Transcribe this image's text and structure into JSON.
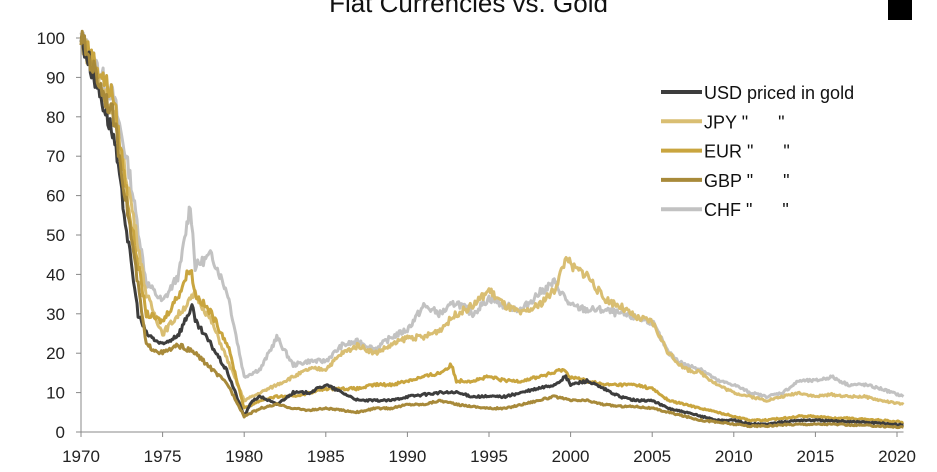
{
  "chart_data": {
    "type": "line",
    "title": "Fiat Currencies vs. Gold",
    "xlabel": "",
    "ylabel": "",
    "xlim": [
      1970,
      2020.4
    ],
    "ylim": [
      0,
      100
    ],
    "xticks": [
      "1970",
      "1975",
      "1980",
      "1985",
      "1990",
      "1995",
      "2000",
      "2005",
      "2010",
      "2015",
      "2020"
    ],
    "yticks": [
      "0",
      "10",
      "20",
      "30",
      "40",
      "50",
      "60",
      "70",
      "80",
      "90",
      "100"
    ],
    "legend_position": "top-right",
    "series": [
      {
        "name": "CHF \"      \"",
        "color": "#c2c2c2",
        "points": [
          [
            1970,
            100
          ],
          [
            1972,
            85
          ],
          [
            1973,
            65
          ],
          [
            1974,
            38
          ],
          [
            1975,
            33
          ],
          [
            1976,
            40
          ],
          [
            1976.7,
            58
          ],
          [
            1977,
            42
          ],
          [
            1978,
            45
          ],
          [
            1979,
            35
          ],
          [
            1980,
            14
          ],
          [
            1981,
            16
          ],
          [
            1982,
            24
          ],
          [
            1983,
            17
          ],
          [
            1984,
            18
          ],
          [
            1985,
            18
          ],
          [
            1986,
            22
          ],
          [
            1987,
            23
          ],
          [
            1988,
            21
          ],
          [
            1989,
            24
          ],
          [
            1990,
            26
          ],
          [
            1991,
            32
          ],
          [
            1992,
            30
          ],
          [
            1993,
            33
          ],
          [
            1994,
            30
          ],
          [
            1995,
            34
          ],
          [
            1996,
            32
          ],
          [
            1997,
            31
          ],
          [
            1998,
            35
          ],
          [
            1999,
            38
          ],
          [
            2000,
            32
          ],
          [
            2001,
            31
          ],
          [
            2002,
            31
          ],
          [
            2003,
            30
          ],
          [
            2004,
            29
          ],
          [
            2005,
            28
          ],
          [
            2006,
            20
          ],
          [
            2007,
            17
          ],
          [
            2008,
            16
          ],
          [
            2009,
            13
          ],
          [
            2010,
            12
          ],
          [
            2011,
            10
          ],
          [
            2012,
            9
          ],
          [
            2013,
            10
          ],
          [
            2014,
            13
          ],
          [
            2015,
            13
          ],
          [
            2016,
            14
          ],
          [
            2017,
            12
          ],
          [
            2018,
            12
          ],
          [
            2019,
            11
          ],
          [
            2020.4,
            9
          ]
        ]
      },
      {
        "name": "JPY \"      \"",
        "color": "#d9be72",
        "points": [
          [
            1970,
            100
          ],
          [
            1972,
            80
          ],
          [
            1973,
            60
          ],
          [
            1974,
            35
          ],
          [
            1975,
            25
          ],
          [
            1976,
            30
          ],
          [
            1977,
            35
          ],
          [
            1978,
            28
          ],
          [
            1979,
            18
          ],
          [
            1980,
            8
          ],
          [
            1981,
            10
          ],
          [
            1982,
            12
          ],
          [
            1983,
            14
          ],
          [
            1984,
            16
          ],
          [
            1985,
            16
          ],
          [
            1986,
            20
          ],
          [
            1987,
            22
          ],
          [
            1988,
            20
          ],
          [
            1989,
            22
          ],
          [
            1990,
            24
          ],
          [
            1991,
            24
          ],
          [
            1992,
            26
          ],
          [
            1993,
            30
          ],
          [
            1994,
            32
          ],
          [
            1995,
            36
          ],
          [
            1996,
            32
          ],
          [
            1997,
            30
          ],
          [
            1998,
            32
          ],
          [
            1999,
            36
          ],
          [
            1999.8,
            45
          ],
          [
            2000,
            42
          ],
          [
            2001,
            40
          ],
          [
            2002,
            34
          ],
          [
            2003,
            32
          ],
          [
            2004,
            29
          ],
          [
            2005,
            28
          ],
          [
            2006,
            20
          ],
          [
            2007,
            16
          ],
          [
            2008,
            15
          ],
          [
            2009,
            12
          ],
          [
            2010,
            10
          ],
          [
            2011,
            9
          ],
          [
            2012,
            8
          ],
          [
            2013,
            9
          ],
          [
            2014,
            10
          ],
          [
            2015,
            9
          ],
          [
            2016,
            9.5
          ],
          [
            2017,
            9
          ],
          [
            2018,
            9
          ],
          [
            2019,
            8
          ],
          [
            2020.4,
            7
          ]
        ]
      },
      {
        "name": "EUR \"      \"",
        "color": "#c9a53f",
        "points": [
          [
            1970,
            100
          ],
          [
            1972,
            85
          ],
          [
            1973,
            55
          ],
          [
            1974,
            30
          ],
          [
            1975,
            28
          ],
          [
            1976,
            35
          ],
          [
            1976.7,
            42
          ],
          [
            1977,
            35
          ],
          [
            1978,
            30
          ],
          [
            1979,
            22
          ],
          [
            1980,
            6
          ],
          [
            1981,
            8
          ],
          [
            1982,
            9
          ],
          [
            1983,
            9
          ],
          [
            1984,
            10
          ],
          [
            1985,
            11
          ],
          [
            1986,
            11
          ],
          [
            1987,
            11
          ],
          [
            1988,
            12
          ],
          [
            1989,
            12
          ],
          [
            1990,
            13
          ],
          [
            1991,
            14
          ],
          [
            1992,
            15
          ],
          [
            1992.7,
            17
          ],
          [
            1993,
            13
          ],
          [
            1994,
            13
          ],
          [
            1995,
            14
          ],
          [
            1996,
            13
          ],
          [
            1997,
            13
          ],
          [
            1998,
            14
          ],
          [
            1999,
            15
          ],
          [
            1999.5,
            16
          ],
          [
            2000,
            14
          ],
          [
            2001,
            13
          ],
          [
            2002,
            12
          ],
          [
            2003,
            12
          ],
          [
            2004,
            12
          ],
          [
            2005,
            11
          ],
          [
            2006,
            8
          ],
          [
            2007,
            7
          ],
          [
            2008,
            6
          ],
          [
            2009,
            5
          ],
          [
            2010,
            4
          ],
          [
            2011,
            3
          ],
          [
            2012,
            3
          ],
          [
            2013,
            3.5
          ],
          [
            2014,
            4
          ],
          [
            2015,
            4
          ],
          [
            2016,
            3.5
          ],
          [
            2017,
            3.5
          ],
          [
            2018,
            3.2
          ],
          [
            2019,
            3
          ],
          [
            2020.4,
            2.5
          ]
        ]
      },
      {
        "name": "USD priced in gold",
        "color": "#3d3d3d",
        "points": [
          [
            1970,
            100
          ],
          [
            1971,
            88
          ],
          [
            1972,
            75
          ],
          [
            1973,
            45
          ],
          [
            1973.5,
            30
          ],
          [
            1974,
            25
          ],
          [
            1975,
            22
          ],
          [
            1976,
            25
          ],
          [
            1976.8,
            32
          ],
          [
            1977,
            28
          ],
          [
            1978,
            22
          ],
          [
            1979,
            15
          ],
          [
            1980,
            4
          ],
          [
            1980.5,
            8
          ],
          [
            1981,
            9
          ],
          [
            1982,
            7
          ],
          [
            1983,
            10
          ],
          [
            1984,
            10
          ],
          [
            1985,
            12
          ],
          [
            1986,
            10
          ],
          [
            1987,
            8
          ],
          [
            1988,
            8
          ],
          [
            1989,
            8
          ],
          [
            1990,
            9
          ],
          [
            1991,
            9.5
          ],
          [
            1992,
            10
          ],
          [
            1993,
            10
          ],
          [
            1994,
            9
          ],
          [
            1995,
            9
          ],
          [
            1996,
            9
          ],
          [
            1997,
            10
          ],
          [
            1998,
            11
          ],
          [
            1999,
            12
          ],
          [
            1999.7,
            14
          ],
          [
            2000,
            12
          ],
          [
            2001,
            13
          ],
          [
            2002,
            11
          ],
          [
            2003,
            9
          ],
          [
            2004,
            8
          ],
          [
            2005,
            8
          ],
          [
            2006,
            6
          ],
          [
            2007,
            5
          ],
          [
            2008,
            4
          ],
          [
            2009,
            3
          ],
          [
            2010,
            3
          ],
          [
            2011,
            2
          ],
          [
            2012,
            2
          ],
          [
            2013,
            2.5
          ],
          [
            2014,
            3
          ],
          [
            2015,
            3
          ],
          [
            2016,
            2.8
          ],
          [
            2017,
            2.7
          ],
          [
            2018,
            2.5
          ],
          [
            2019,
            2.2
          ],
          [
            2020.4,
            1.8
          ]
        ]
      },
      {
        "name": "GBP \"      \"",
        "color": "#a88a3a",
        "points": [
          [
            1970,
            100
          ],
          [
            1972,
            80
          ],
          [
            1973,
            52
          ],
          [
            1974,
            22
          ],
          [
            1975,
            20
          ],
          [
            1976,
            22
          ],
          [
            1977,
            20
          ],
          [
            1978,
            16
          ],
          [
            1979,
            12
          ],
          [
            1980,
            4
          ],
          [
            1981,
            6
          ],
          [
            1982,
            7
          ],
          [
            1983,
            6
          ],
          [
            1984,
            5.5
          ],
          [
            1985,
            6
          ],
          [
            1986,
            5.5
          ],
          [
            1987,
            5
          ],
          [
            1988,
            6
          ],
          [
            1989,
            6
          ],
          [
            1990,
            7
          ],
          [
            1991,
            7
          ],
          [
            1992,
            8
          ],
          [
            1993,
            7
          ],
          [
            1994,
            6.5
          ],
          [
            1995,
            6
          ],
          [
            1996,
            6
          ],
          [
            1997,
            7
          ],
          [
            1998,
            8
          ],
          [
            1999,
            9
          ],
          [
            2000,
            8
          ],
          [
            2001,
            8
          ],
          [
            2002,
            7
          ],
          [
            2003,
            6.5
          ],
          [
            2004,
            6.5
          ],
          [
            2005,
            6
          ],
          [
            2006,
            5
          ],
          [
            2007,
            4
          ],
          [
            2008,
            3
          ],
          [
            2009,
            2.5
          ],
          [
            2010,
            2
          ],
          [
            2011,
            1.5
          ],
          [
            2012,
            1.5
          ],
          [
            2013,
            1.8
          ],
          [
            2014,
            2
          ],
          [
            2015,
            2
          ],
          [
            2016,
            2
          ],
          [
            2017,
            1.8
          ],
          [
            2018,
            1.7
          ],
          [
            2019,
            1.5
          ],
          [
            2020.4,
            1.2
          ]
        ]
      }
    ],
    "legend": [
      {
        "label": "USD priced in gold",
        "color": "#3d3d3d"
      },
      {
        "label": "JPY \"      \"",
        "color": "#d9be72"
      },
      {
        "label": "EUR \"      \"",
        "color": "#c9a53f"
      },
      {
        "label": "GBP \"      \"",
        "color": "#a88a3a"
      },
      {
        "label": "CHF \"      \"",
        "color": "#c2c2c2"
      }
    ]
  }
}
